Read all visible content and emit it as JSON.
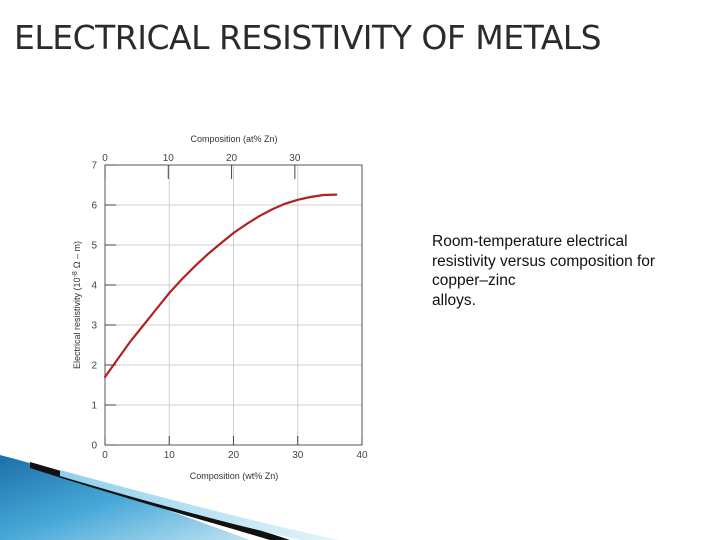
{
  "slide": {
    "title": "ELECTRICAL RESISTIVITY OF METALS",
    "caption_lines": [
      "Room-temperature electrical",
      "resistivity versus composition for",
      "copper–zinc",
      "alloys."
    ]
  },
  "chart_data": {
    "type": "line",
    "title": "",
    "xlabel": "Composition (wt% Zn)",
    "x2label": "Composition (at% Zn)",
    "ylabel": "Electrical resistivity (10",
    "ylabel_exp": "-8",
    "ylabel_unit": "Ω – m)",
    "xlim": [
      0,
      40
    ],
    "ylim": [
      0,
      7
    ],
    "x2lim": [
      0,
      40
    ],
    "xticks": [
      0,
      10,
      20,
      30,
      40
    ],
    "yticks": [
      0,
      1,
      2,
      3,
      4,
      5,
      6,
      7
    ],
    "x2ticks": [
      0,
      10,
      20,
      30
    ],
    "grid": true,
    "line_color": "#b22222",
    "series": [
      {
        "x": [
          0,
          2,
          4,
          6,
          8,
          10,
          12,
          14,
          16,
          18,
          20,
          22,
          24,
          26,
          28,
          30,
          32,
          34,
          36
        ],
        "values": [
          1.7,
          2.15,
          2.6,
          3.0,
          3.4,
          3.8,
          4.15,
          4.47,
          4.77,
          5.04,
          5.3,
          5.52,
          5.72,
          5.89,
          6.03,
          6.13,
          6.2,
          6.25,
          6.26
        ]
      }
    ]
  }
}
